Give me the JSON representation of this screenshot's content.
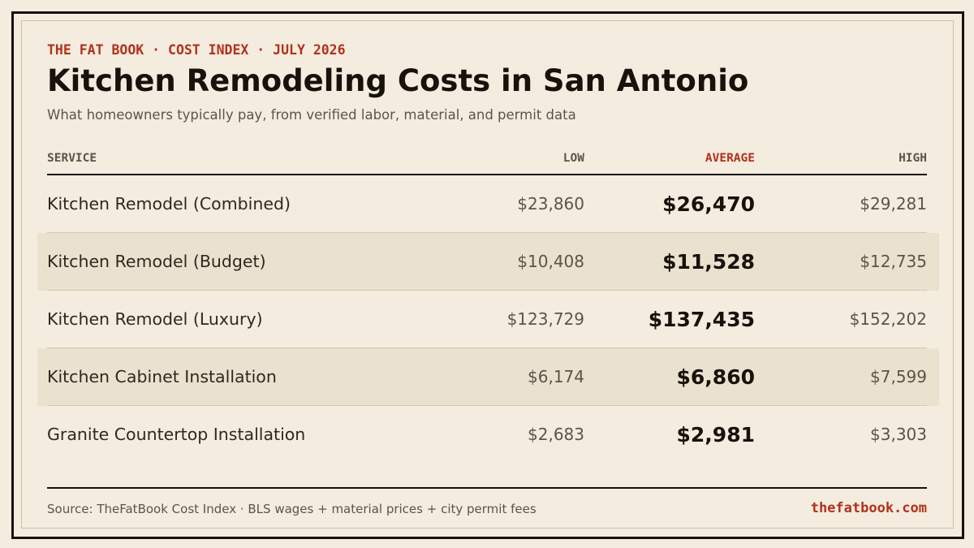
{
  "header": {
    "kicker": "THE FAT BOOK · COST INDEX · JULY 2026",
    "title": "Kitchen Remodeling Costs in San Antonio",
    "subtitle": "What homeowners typically pay, from verified labor, material, and permit data"
  },
  "table": {
    "columns": {
      "service": "SERVICE",
      "low": "LOW",
      "average": "AVERAGE",
      "high": "HIGH"
    },
    "rows": [
      {
        "service": "Kitchen Remodel (Combined)",
        "low": "$23,860",
        "average": "$26,470",
        "high": "$29,281"
      },
      {
        "service": "Kitchen Remodel (Budget)",
        "low": "$10,408",
        "average": "$11,528",
        "high": "$12,735"
      },
      {
        "service": "Kitchen Remodel (Luxury)",
        "low": "$123,729",
        "average": "$137,435",
        "high": "$152,202"
      },
      {
        "service": "Kitchen Cabinet Installation",
        "low": "$6,174",
        "average": "$6,860",
        "high": "$7,599"
      },
      {
        "service": "Granite Countertop Installation",
        "low": "$2,683",
        "average": "$2,981",
        "high": "$3,303"
      }
    ]
  },
  "footer": {
    "source": "Source: TheFatBook Cost Index · BLS wages + material prices + city permit fees",
    "site": "thefatbook.com"
  },
  "colors": {
    "background": "#f4ecdf",
    "accent": "#b0321c",
    "ink": "#17120c",
    "muted": "#5c544a",
    "row_band": "#ebe1cf"
  }
}
